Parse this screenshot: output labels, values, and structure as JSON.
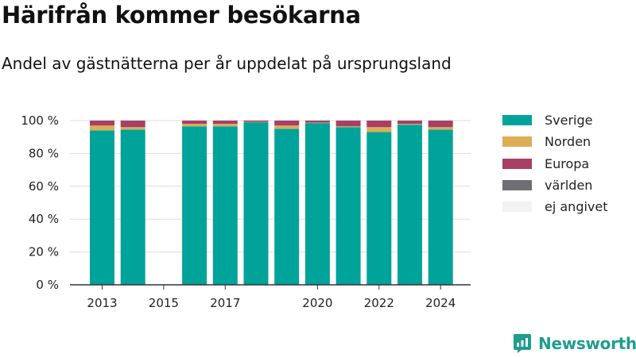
{
  "header": {
    "title": "Härifrån kommer besökarna",
    "subtitle": "Andel av gästnätterna per år uppdelat på ursprungsland"
  },
  "chart_data": {
    "type": "bar",
    "stacked": true,
    "x": [
      2013,
      2014,
      2015,
      2016,
      2017,
      2018,
      2019,
      2020,
      2021,
      2022,
      2023,
      2024
    ],
    "x_tick_labels": [
      "2013",
      "2015",
      "2017",
      "2020",
      "2022",
      "2024"
    ],
    "x_tick_values": [
      2013,
      2015,
      2017,
      2020,
      2022,
      2024
    ],
    "y_tick_labels": [
      "0 %",
      "20 %",
      "40 %",
      "60 %",
      "80 %",
      "100 %"
    ],
    "y_tick_values": [
      0,
      20,
      40,
      60,
      80,
      100
    ],
    "ylim": [
      0,
      100
    ],
    "grid": true,
    "legend_position": "right",
    "series": [
      {
        "name": "Sverige",
        "color": "#00a39a",
        "values": [
          94,
          94.5,
          null,
          96.5,
          96.5,
          99,
          95,
          98.5,
          96,
          93,
          97.5,
          94.5
        ]
      },
      {
        "name": "Norden",
        "color": "#dcae55",
        "values": [
          3,
          1.5,
          null,
          1.5,
          1.5,
          0.3,
          2,
          0.3,
          0.5,
          3,
          0.5,
          1.5
        ]
      },
      {
        "name": "Europa",
        "color": "#a83f65",
        "values": [
          3,
          4,
          null,
          2,
          2,
          0.7,
          3,
          1.2,
          3.5,
          4,
          2,
          4
        ]
      },
      {
        "name": "världen",
        "color": "#6e6e73",
        "values": [
          0,
          0,
          null,
          0,
          0,
          0,
          0,
          0,
          0,
          0,
          0,
          0
        ]
      },
      {
        "name": "ej angivet",
        "color": "#f2f2f2",
        "values": [
          0,
          0,
          null,
          0,
          0,
          0,
          0,
          0,
          0,
          0,
          0,
          0
        ]
      }
    ]
  },
  "branding": {
    "name": "Newsworthy",
    "icon": "newsworthy-logo-icon",
    "color": "#1f9d8e"
  }
}
